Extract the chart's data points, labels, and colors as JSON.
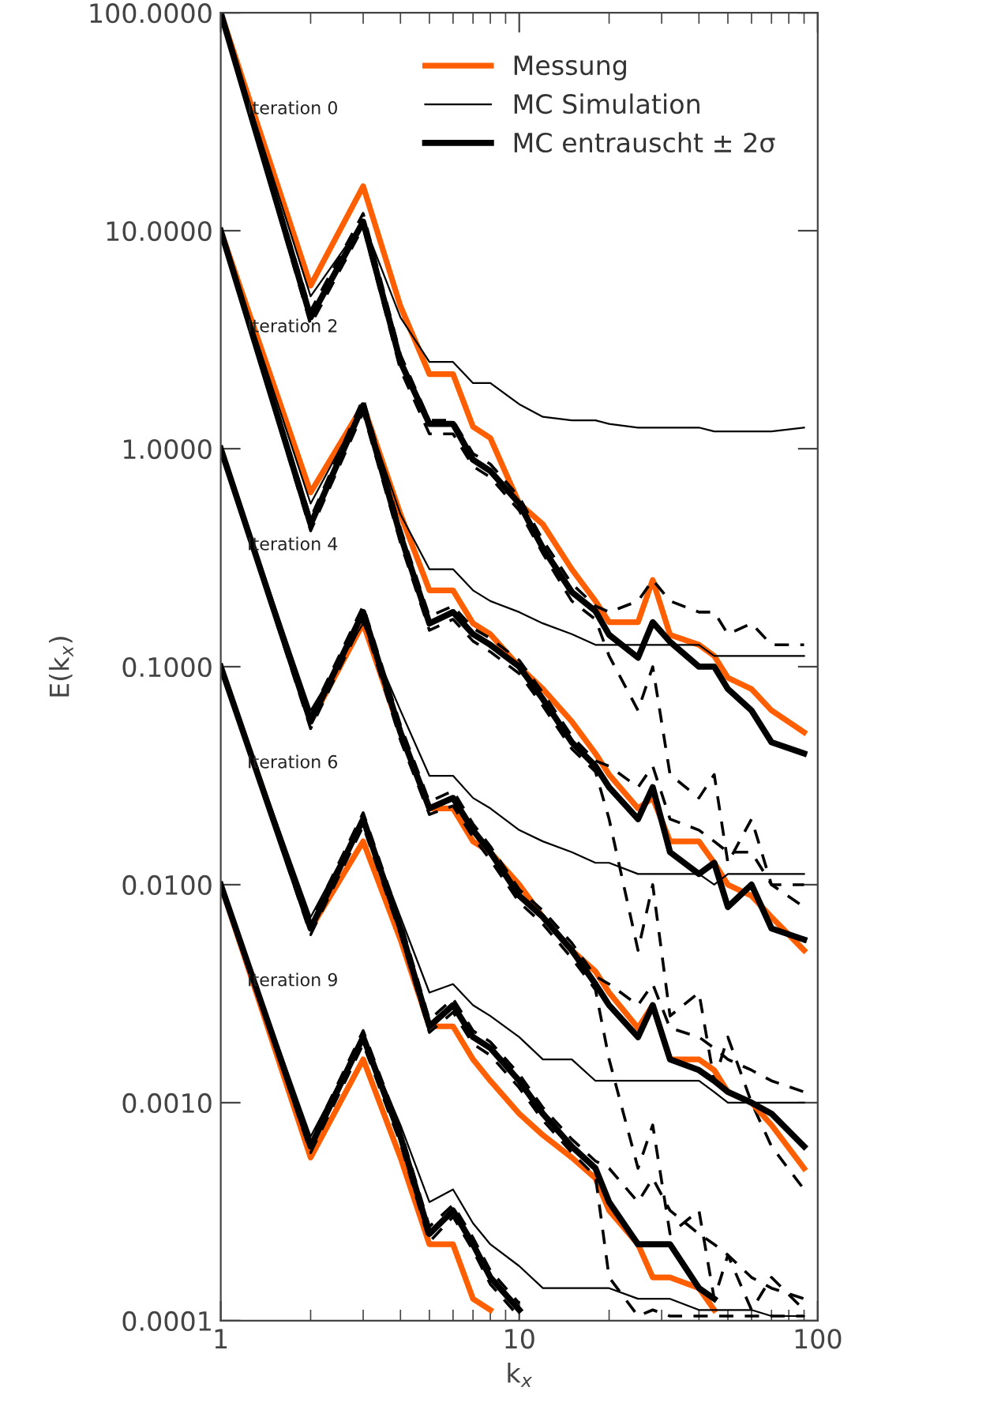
{
  "chart_data": {
    "type": "line",
    "xlabel": "k$_{x}$",
    "ylabel": "E(k$_{x}$)",
    "log": "xy",
    "xlim": [
      1,
      100
    ],
    "ylim": [
      0.0001,
      100
    ],
    "xticks": [
      1,
      10,
      100
    ],
    "yticks": [
      {
        "value": 0.0001,
        "label": "0.0001"
      },
      {
        "value": 0.001,
        "label": "0.0010"
      },
      {
        "value": 0.01,
        "label": "0.0100"
      },
      {
        "value": 0.1,
        "label": "0.1000"
      },
      {
        "value": 1,
        "label": "1.0000"
      },
      {
        "value": 10,
        "label": "10.0000"
      },
      {
        "value": 100,
        "label": "100.0000"
      }
    ],
    "legend": "top right",
    "grid": false,
    "x": [
      1,
      2,
      3,
      4,
      5,
      6,
      7,
      8,
      10,
      12,
      15,
      18,
      20,
      25,
      28,
      32,
      40,
      45,
      50,
      60,
      70,
      90
    ],
    "annotations": [
      "Iteration 0",
      "Iteration 2",
      "Iteration 4",
      "Iteration 6",
      "Iteration 9"
    ],
    "series": [
      {
        "name": "Messung",
        "color": "#ff5f00",
        "line_style": "solid",
        "values": [
          100,
          5.6,
          16,
          4.5,
          2.2,
          2.2,
          1.26,
          1.12,
          0.56,
          0.45,
          0.28,
          0.2,
          0.16,
          0.16,
          0.25,
          0.14,
          0.126,
          0.112,
          0.089,
          0.079,
          0.063,
          0.05
        ]
      },
      {
        "name": "MC Simulation",
        "color": "#000000",
        "line_style": "solid",
        "values": [
          100,
          5.0,
          11,
          4.0,
          2.5,
          2.5,
          2.0,
          2.0,
          1.6,
          1.4,
          1.35,
          1.35,
          1.3,
          1.25,
          1.25,
          1.25,
          1.25,
          1.2,
          1.2,
          1.2,
          1.2,
          1.25
        ]
      },
      {
        "name": "MC entrauscht ± 2σ",
        "color": "#000000",
        "line_style": "solid",
        "values": [
          100,
          4.0,
          11,
          2.5,
          1.3,
          1.3,
          0.89,
          0.79,
          0.56,
          0.35,
          0.22,
          0.18,
          0.14,
          0.11,
          0.16,
          0.13,
          0.1,
          0.1,
          0.079,
          0.063,
          0.045,
          0.04
        ]
      },
      {
        "color": "#000000",
        "line_style": "dashed",
        "values": [
          100,
          3.7,
          10.4,
          2.3,
          1.17,
          1.17,
          0.83,
          0.74,
          0.52,
          0.33,
          0.2,
          0.165,
          0.112,
          0.063,
          0.1,
          0.032,
          0.025,
          0.032,
          0.0126,
          0.02,
          0.01,
          0.0079
        ]
      },
      {
        "color": "#000000",
        "line_style": "dashed",
        "values": [
          100,
          4.3,
          12,
          2.7,
          1.35,
          1.35,
          0.95,
          0.85,
          0.6,
          0.38,
          0.24,
          0.19,
          0.178,
          0.2,
          0.25,
          0.2,
          0.178,
          0.178,
          0.141,
          0.158,
          0.126,
          0.126
        ]
      },
      {
        "color": "#ff5f00",
        "line_style": "solid",
        "values": [
          10,
          0.63,
          1.58,
          0.5,
          0.224,
          0.224,
          0.158,
          0.141,
          0.1,
          0.079,
          0.056,
          0.04,
          0.032,
          0.0224,
          0.025,
          0.0158,
          0.0158,
          0.0126,
          0.01,
          0.0089,
          0.0071,
          0.005
        ]
      },
      {
        "color": "#000000",
        "line_style": "solid",
        "values": [
          10,
          0.56,
          1.58,
          0.5,
          0.28,
          0.28,
          0.224,
          0.2,
          0.178,
          0.158,
          0.141,
          0.126,
          0.126,
          0.126,
          0.126,
          0.126,
          0.126,
          0.112,
          0.112,
          0.112,
          0.112,
          0.112
        ]
      },
      {
        "color": "#000000",
        "line_style": "solid",
        "values": [
          10,
          0.45,
          1.58,
          0.4,
          0.158,
          0.178,
          0.141,
          0.126,
          0.1,
          0.071,
          0.045,
          0.035,
          0.028,
          0.02,
          0.028,
          0.0141,
          0.0112,
          0.0126,
          0.0079,
          0.01,
          0.0063,
          0.0056
        ]
      },
      {
        "color": "#000000",
        "line_style": "dashed",
        "values": [
          10,
          0.42,
          1.47,
          0.37,
          0.147,
          0.165,
          0.131,
          0.117,
          0.093,
          0.066,
          0.042,
          0.033,
          0.02,
          0.005,
          0.01,
          0.0025,
          0.0032,
          0.00126,
          0.002,
          0.001,
          0.00063,
          0.0004
        ]
      },
      {
        "color": "#000000",
        "line_style": "dashed",
        "values": [
          10,
          0.48,
          1.7,
          0.43,
          0.17,
          0.19,
          0.15,
          0.135,
          0.107,
          0.076,
          0.048,
          0.037,
          0.035,
          0.028,
          0.035,
          0.02,
          0.0178,
          0.0158,
          0.0141,
          0.0141,
          0.01,
          0.01
        ]
      },
      {
        "color": "#ff5f00",
        "line_style": "solid",
        "values": [
          1,
          0.056,
          0.158,
          0.05,
          0.0224,
          0.0224,
          0.0158,
          0.0141,
          0.01,
          0.0071,
          0.005,
          0.004,
          0.0032,
          0.0022,
          0.0028,
          0.00158,
          0.00158,
          0.00141,
          0.00112,
          0.001,
          0.00079,
          0.0005
        ]
      },
      {
        "color": "#000000",
        "line_style": "solid",
        "values": [
          1,
          0.063,
          0.158,
          0.063,
          0.0316,
          0.0316,
          0.025,
          0.0224,
          0.0178,
          0.0158,
          0.0141,
          0.0126,
          0.0126,
          0.0112,
          0.0112,
          0.0112,
          0.0112,
          0.01,
          0.0112,
          0.0112,
          0.0112,
          0.0112
        ]
      },
      {
        "color": "#000000",
        "line_style": "solid",
        "values": [
          1,
          0.056,
          0.178,
          0.05,
          0.0224,
          0.025,
          0.0178,
          0.0141,
          0.0089,
          0.0071,
          0.005,
          0.0035,
          0.0028,
          0.002,
          0.0028,
          0.00158,
          0.00141,
          0.00126,
          0.00112,
          0.001,
          0.00089,
          0.00063
        ]
      },
      {
        "color": "#000000",
        "line_style": "dashed",
        "values": [
          1,
          0.052,
          0.165,
          0.046,
          0.021,
          0.023,
          0.0165,
          0.013,
          0.0083,
          0.0066,
          0.0046,
          0.0033,
          0.00158,
          0.0005,
          0.00079,
          0.00025,
          0.00032,
          0.000126,
          0.0002,
          0.000112,
          0.000158,
          0.000112
        ]
      },
      {
        "color": "#000000",
        "line_style": "dashed",
        "values": [
          1,
          0.06,
          0.19,
          0.054,
          0.024,
          0.027,
          0.019,
          0.015,
          0.0095,
          0.0076,
          0.0054,
          0.0038,
          0.0035,
          0.0028,
          0.0035,
          0.0022,
          0.002,
          0.00178,
          0.00158,
          0.00141,
          0.00126,
          0.00112
        ]
      },
      {
        "color": "#ff5f00",
        "line_style": "solid",
        "values": [
          0.1,
          0.0063,
          0.0158,
          0.0056,
          0.00224,
          0.00224,
          0.00158,
          0.00126,
          0.00089,
          0.00071,
          0.00056,
          0.00045,
          0.00032,
          0.000224,
          0.000158,
          0.000158,
          0.000141,
          0.000112,
          null,
          null,
          null,
          null
        ]
      },
      {
        "color": "#000000",
        "line_style": "solid",
        "values": [
          0.1,
          0.0071,
          0.02,
          0.0071,
          0.0032,
          0.0035,
          0.0028,
          0.0025,
          0.002,
          0.00158,
          0.00158,
          0.00126,
          0.00126,
          0.00126,
          0.00126,
          0.00126,
          0.00126,
          0.00112,
          0.001,
          0.001,
          0.001,
          0.001
        ]
      },
      {
        "color": "#000000",
        "line_style": "solid",
        "values": [
          0.1,
          0.0063,
          0.02,
          0.0063,
          0.00224,
          0.0028,
          0.002,
          0.00178,
          0.00126,
          0.00089,
          0.00063,
          0.0005,
          0.00035,
          0.000224,
          0.000224,
          0.000224,
          0.000141,
          0.000126,
          null,
          null,
          null,
          null
        ]
      },
      {
        "color": "#000000",
        "line_style": "dashed",
        "values": [
          0.1,
          0.0059,
          0.0186,
          0.0059,
          0.0021,
          0.0026,
          0.00186,
          0.00165,
          0.00117,
          0.00083,
          0.00059,
          0.00046,
          0.000158,
          0.000105,
          0.000112,
          0.000105,
          0.000105,
          0.000105,
          0.000105,
          0.000105,
          0.000105,
          0.000105
        ]
      },
      {
        "color": "#000000",
        "line_style": "dashed",
        "values": [
          0.1,
          0.0068,
          0.0214,
          0.0068,
          0.0024,
          0.003,
          0.00214,
          0.0019,
          0.00135,
          0.00095,
          0.00068,
          0.00054,
          0.0005,
          0.00035,
          0.00045,
          0.00032,
          0.00025,
          0.000224,
          0.0002,
          0.000158,
          0.000141,
          0.000126
        ]
      },
      {
        "color": "#ff5f00",
        "line_style": "solid",
        "values": [
          0.01,
          0.00056,
          0.00158,
          0.00056,
          0.000224,
          0.000224,
          0.000126,
          0.000112,
          null,
          null,
          null,
          null,
          null,
          null,
          null,
          null,
          null,
          null,
          null,
          null,
          null,
          null
        ]
      },
      {
        "color": "#000000",
        "line_style": "solid",
        "values": [
          0.01,
          0.0007,
          0.002,
          0.00079,
          0.00035,
          0.0004,
          0.00028,
          0.000224,
          0.000178,
          0.000141,
          0.000141,
          0.000141,
          0.000141,
          0.000126,
          0.000126,
          0.000126,
          0.000112,
          0.000112,
          0.000112,
          0.000112,
          0.000105,
          0.000105
        ]
      },
      {
        "color": "#000000",
        "line_style": "solid",
        "values": [
          0.01,
          0.00063,
          0.002,
          0.0007,
          0.00025,
          0.00032,
          0.000224,
          0.000158,
          0.000112,
          null,
          null,
          null,
          null,
          null,
          null,
          null,
          null,
          null,
          null,
          null,
          null,
          null
        ]
      },
      {
        "color": "#000000",
        "line_style": "dashed",
        "values": [
          0.01,
          0.00059,
          0.00186,
          0.00065,
          0.00023,
          0.0003,
          0.00021,
          0.000147,
          0.000104,
          null,
          null,
          null,
          null,
          null,
          null,
          null,
          null,
          null,
          null,
          null,
          null,
          null
        ]
      },
      {
        "color": "#000000",
        "line_style": "dashed",
        "values": [
          0.01,
          0.00067,
          0.00214,
          0.00075,
          0.00027,
          0.00034,
          0.00024,
          0.00017,
          0.00012,
          null,
          null,
          null,
          null,
          null,
          null,
          null,
          null,
          null,
          null,
          null,
          null,
          null
        ]
      }
    ]
  }
}
